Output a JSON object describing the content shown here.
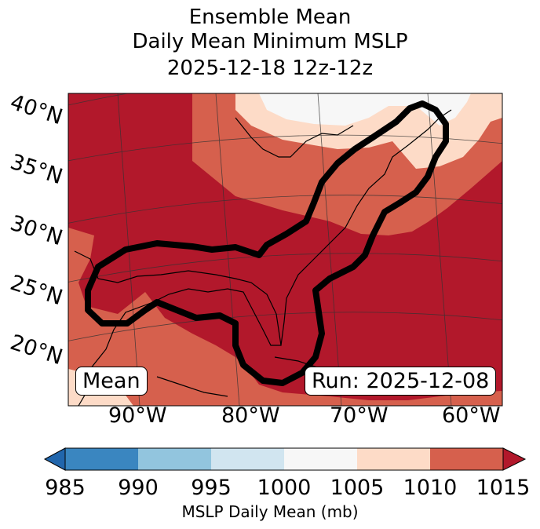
{
  "title": {
    "line1": "Ensemble Mean",
    "line2": "Daily Mean Minimum MSLP",
    "line3": "2025-12-18 12z-12z"
  },
  "map": {
    "lat_labels": [
      "40°N",
      "35°N",
      "30°N",
      "25°N",
      "20°N"
    ],
    "lon_labels": [
      "90°W",
      "80°W",
      "70°W",
      "60°W"
    ],
    "mean_label": "Mean",
    "run_label": "Run: 2025-12-08"
  },
  "colorbar": {
    "ticks": [
      "985",
      "990",
      "995",
      "1000",
      "1005",
      "1010",
      "1015"
    ],
    "label": "MSLP Daily Mean (mb)",
    "colors": [
      "#3a86c0",
      "#92c5de",
      "#d1e5f0",
      "#f7f7f7",
      "#fddbc7",
      "#d6604d",
      "#b2182b"
    ]
  }
}
